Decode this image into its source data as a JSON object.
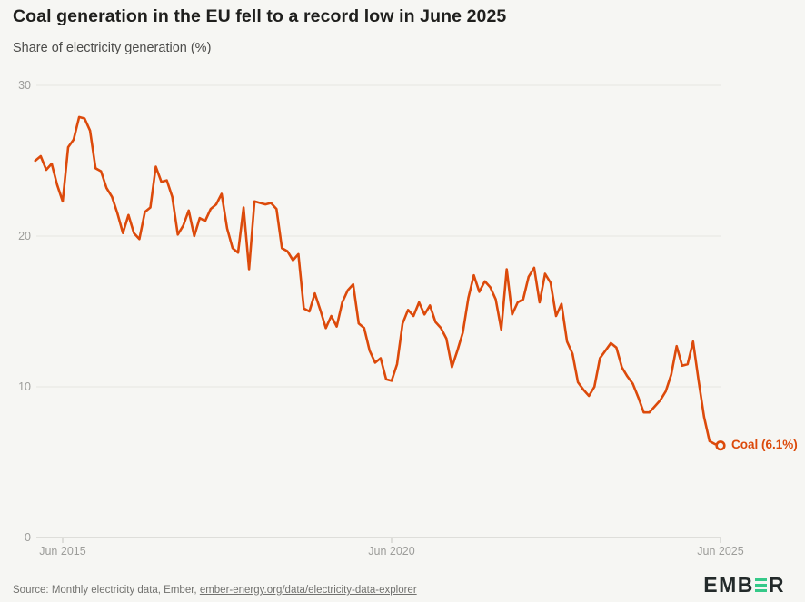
{
  "header": {
    "title": "Coal generation in the EU fell to a record low in June 2025",
    "subtitle": "Share of electricity generation (%)"
  },
  "chart_data": {
    "type": "line",
    "title": "Coal generation in the EU fell to a record low in June 2025",
    "ylabel": "Share of electricity generation (%)",
    "xlabel": "",
    "frequency": "monthly",
    "x_start": "Jan 2015",
    "x_end": "Jun 2025",
    "ylim": [
      0,
      30
    ],
    "grid": true,
    "line_color": "#dc4a0b",
    "series_name": "Coal",
    "end_label": "Coal (6.1%)",
    "end_value": 6.1,
    "y_ticks": [
      {
        "label": "30",
        "value": 30
      },
      {
        "label": "20",
        "value": 20
      },
      {
        "label": "10",
        "value": 10
      },
      {
        "label": "0",
        "value": 0
      }
    ],
    "x_ticks": [
      {
        "label": "Jun 2015",
        "month_index": 5
      },
      {
        "label": "Jun 2020",
        "month_index": 65
      },
      {
        "label": "Jun 2025",
        "month_index": 125
      }
    ],
    "values": [
      25.0,
      25.3,
      24.4,
      24.8,
      23.4,
      22.3,
      25.9,
      26.4,
      27.9,
      27.8,
      27.0,
      24.5,
      24.3,
      23.2,
      22.6,
      21.5,
      20.2,
      21.4,
      20.2,
      19.8,
      21.6,
      21.9,
      24.6,
      23.6,
      23.7,
      22.6,
      20.1,
      20.7,
      21.7,
      20.0,
      21.2,
      21.0,
      21.8,
      22.1,
      22.8,
      20.5,
      19.2,
      18.9,
      21.9,
      17.8,
      22.3,
      22.2,
      22.1,
      22.2,
      21.8,
      19.2,
      19.0,
      18.4,
      18.8,
      15.2,
      15.0,
      16.2,
      15.1,
      13.9,
      14.7,
      14.0,
      15.6,
      16.4,
      16.8,
      14.2,
      13.9,
      12.4,
      11.6,
      11.9,
      10.5,
      10.4,
      11.5,
      14.2,
      15.1,
      14.7,
      15.6,
      14.8,
      15.4,
      14.3,
      13.9,
      13.2,
      11.3,
      12.4,
      13.6,
      15.9,
      17.4,
      16.3,
      17.0,
      16.6,
      15.8,
      13.8,
      17.8,
      14.8,
      15.6,
      15.8,
      17.3,
      17.9,
      15.6,
      17.5,
      16.9,
      14.7,
      15.5,
      13.0,
      12.2,
      10.3,
      9.8,
      9.4,
      10.0,
      11.9,
      12.4,
      12.9,
      12.6,
      11.3,
      10.7,
      10.2,
      9.3,
      8.3,
      8.3,
      8.7,
      9.1,
      9.7,
      10.8,
      12.7,
      11.4,
      11.5,
      13.0,
      10.4,
      8.0,
      6.4,
      6.2,
      6.1
    ]
  },
  "footer": {
    "source_prefix": "Source: Monthly electricity data, Ember, ",
    "source_link": "ember-energy.org/data/electricity-data-explorer",
    "logo_part1": "EMB",
    "logo_part2": "R"
  }
}
